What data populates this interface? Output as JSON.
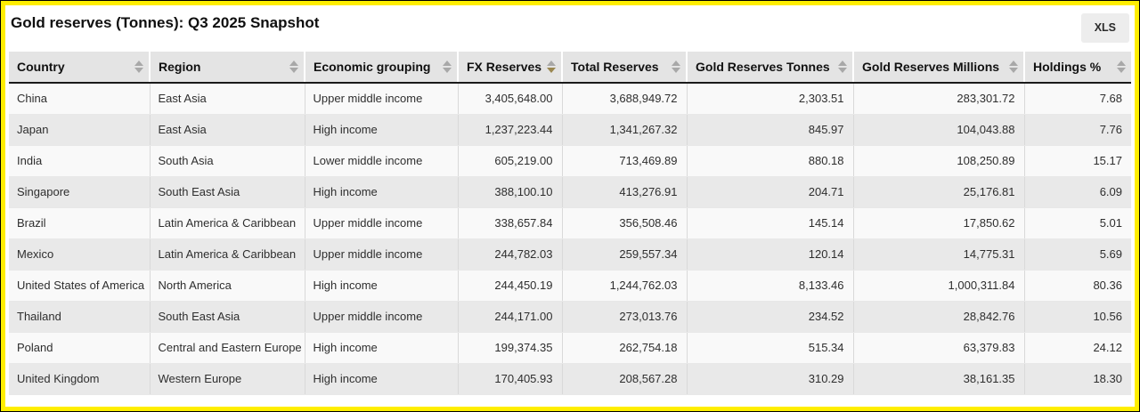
{
  "page": {
    "title": "Gold reserves (Tonnes): Q3 2025 Snapshot",
    "export_button_label": "XLS"
  },
  "colors": {
    "frame_accent": "#ffee00",
    "sort_active": "#9a8750",
    "header_bg": "#e4e4e4",
    "row_stripe": "#e9e9e9"
  },
  "table": {
    "columns": [
      {
        "label": "Country",
        "align": "left",
        "sort": "none"
      },
      {
        "label": "Region",
        "align": "left",
        "sort": "none"
      },
      {
        "label": "Economic grouping",
        "align": "left",
        "sort": "none"
      },
      {
        "label": "FX Reserves",
        "align": "right",
        "sort": "desc"
      },
      {
        "label": "Total Reserves",
        "align": "right",
        "sort": "none"
      },
      {
        "label": "Gold Reserves Tonnes",
        "align": "right",
        "sort": "none"
      },
      {
        "label": "Gold Reserves Millions",
        "align": "right",
        "sort": "none"
      },
      {
        "label": "Holdings %",
        "align": "right",
        "sort": "none"
      }
    ],
    "rows": [
      [
        "China",
        "East Asia",
        "Upper middle income",
        "3,405,648.00",
        "3,688,949.72",
        "2,303.51",
        "283,301.72",
        "7.68"
      ],
      [
        "Japan",
        "East Asia",
        "High income",
        "1,237,223.44",
        "1,341,267.32",
        "845.97",
        "104,043.88",
        "7.76"
      ],
      [
        "India",
        "South Asia",
        "Lower middle income",
        "605,219.00",
        "713,469.89",
        "880.18",
        "108,250.89",
        "15.17"
      ],
      [
        "Singapore",
        "South East Asia",
        "High income",
        "388,100.10",
        "413,276.91",
        "204.71",
        "25,176.81",
        "6.09"
      ],
      [
        "Brazil",
        "Latin America & Caribbean",
        "Upper middle income",
        "338,657.84",
        "356,508.46",
        "145.14",
        "17,850.62",
        "5.01"
      ],
      [
        "Mexico",
        "Latin America & Caribbean",
        "Upper middle income",
        "244,782.03",
        "259,557.34",
        "120.14",
        "14,775.31",
        "5.69"
      ],
      [
        "United States of America",
        "North America",
        "High income",
        "244,450.19",
        "1,244,762.03",
        "8,133.46",
        "1,000,311.84",
        "80.36"
      ],
      [
        "Thailand",
        "South East Asia",
        "Upper middle income",
        "244,171.00",
        "273,013.76",
        "234.52",
        "28,842.76",
        "10.56"
      ],
      [
        "Poland",
        "Central and Eastern Europe",
        "High income",
        "199,374.35",
        "262,754.18",
        "515.34",
        "63,379.83",
        "24.12"
      ],
      [
        "United Kingdom",
        "Western Europe",
        "High income",
        "170,405.93",
        "208,567.28",
        "310.29",
        "38,161.35",
        "18.30"
      ]
    ]
  }
}
